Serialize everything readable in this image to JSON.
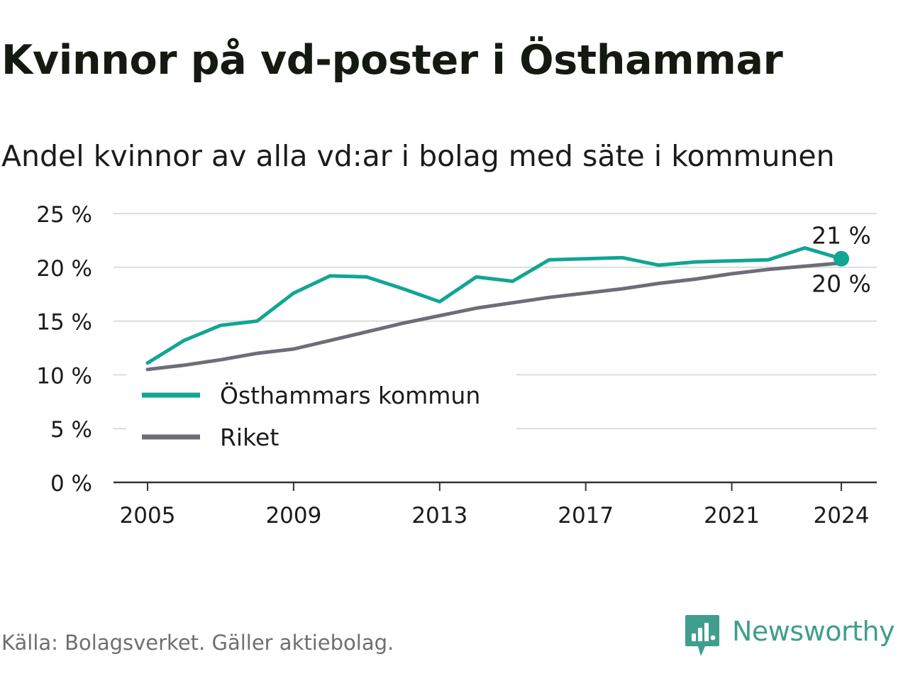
{
  "title": "Kvinnor på vd-poster i Östhammar",
  "subtitle": "Andel kvinnor av alla vd:ar i bolag med säte i kommunen",
  "source": "Källa: Bolagsverket. Gäller aktiebolag.",
  "brand": "Newsworthy",
  "colors": {
    "municipality": "#12a594",
    "nation": "#6e6d77",
    "grid": "#dcdcdc",
    "axis": "#333333",
    "text": "#1b1b1b",
    "brand": "#3f9e8e"
  },
  "chart_data": {
    "type": "line",
    "title": "Kvinnor på vd-poster i Östhammar",
    "subtitle": "Andel kvinnor av alla vd:ar i bolag med säte i kommunen",
    "xlabel": "",
    "ylabel": "",
    "x": [
      2005,
      2006,
      2007,
      2008,
      2009,
      2010,
      2011,
      2012,
      2013,
      2014,
      2015,
      2016,
      2017,
      2018,
      2019,
      2020,
      2021,
      2022,
      2023,
      2024
    ],
    "xlim": [
      2005,
      2024
    ],
    "ylim": [
      0,
      25
    ],
    "x_ticks": [
      "2005",
      "2009",
      "2013",
      "2017",
      "2021",
      "2024"
    ],
    "x_tick_values": [
      2005,
      2009,
      2013,
      2017,
      2021,
      2024
    ],
    "y_ticks": [
      "0 %",
      "5 %",
      "10 %",
      "15 %",
      "20 %",
      "25 %"
    ],
    "y_tick_values": [
      0,
      5,
      10,
      15,
      20,
      25
    ],
    "grid": true,
    "legend_position": "bottom-left",
    "series": [
      {
        "name": "Östhammars kommun",
        "color": "#12a594",
        "values": [
          11.1,
          13.2,
          14.6,
          15.0,
          17.6,
          19.2,
          19.1,
          18.0,
          16.8,
          19.1,
          18.7,
          20.7,
          20.8,
          20.9,
          20.2,
          20.5,
          20.6,
          20.7,
          21.8,
          20.8
        ],
        "end_label": "21 %",
        "end_marker": true
      },
      {
        "name": "Riket",
        "color": "#6e6d77",
        "values": [
          10.5,
          10.9,
          11.4,
          12.0,
          12.4,
          13.2,
          14.0,
          14.8,
          15.5,
          16.2,
          16.7,
          17.2,
          17.6,
          18.0,
          18.5,
          18.9,
          19.4,
          19.8,
          20.1,
          20.4
        ],
        "end_label": "20 %",
        "end_marker": false
      }
    ]
  }
}
